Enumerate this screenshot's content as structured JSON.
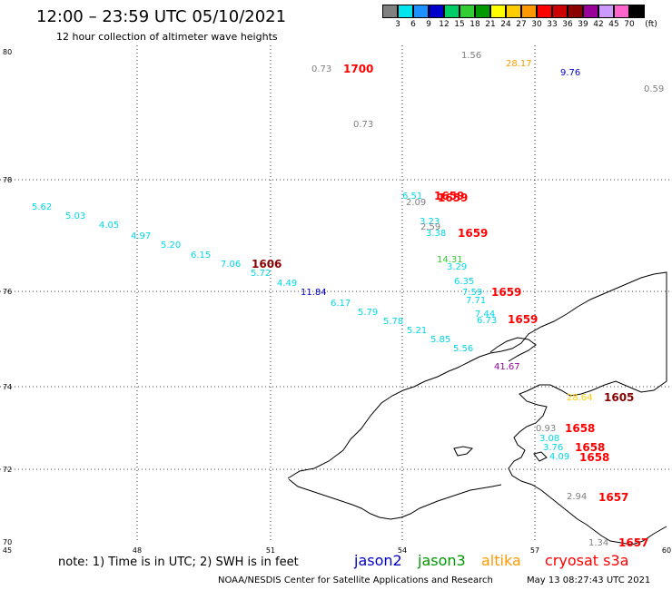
{
  "header": {
    "title": "12:00 – 23:59 UTC 05/10/2021",
    "subtitle": "12 hour collection of altimeter wave heights"
  },
  "color_scale": {
    "labels": [
      "3",
      "6",
      "9",
      "12",
      "15",
      "18",
      "21",
      "24",
      "27",
      "30",
      "33",
      "36",
      "39",
      "42",
      "45",
      "70"
    ],
    "unit": "(ft)",
    "colors": [
      "#808080",
      "#00e5ee",
      "#1e90ff",
      "#0000cd",
      "#00cd66",
      "#32cd32",
      "#009900",
      "#ffff00",
      "#ffcc00",
      "#ff9900",
      "#ff0000",
      "#cc0000",
      "#8b0000",
      "#990099",
      "#cc99ff",
      "#ff66cc",
      "#000000"
    ]
  },
  "map": {
    "lat_ticks": [
      "80",
      "78",
      "76",
      "74",
      "72",
      "70"
    ],
    "lon_ticks": [
      "45",
      "48",
      "51",
      "54",
      "57",
      "60"
    ],
    "observations": [
      {
        "text": "0.73",
        "color": "#808080"
      },
      {
        "text": "1.56",
        "color": "#808080"
      },
      {
        "text": "28.17",
        "color": "#ff9900"
      },
      {
        "text": "9.76",
        "color": "#0000cd"
      },
      {
        "text": "0.59",
        "color": "#808080"
      },
      {
        "text": "0.73",
        "color": "#808080"
      },
      {
        "text": "5.62",
        "color": "#00d8e8"
      },
      {
        "text": "5.03",
        "color": "#00d8e8"
      },
      {
        "text": "4.05",
        "color": "#00d8e8"
      },
      {
        "text": "4.97",
        "color": "#00d8e8"
      },
      {
        "text": "5.20",
        "color": "#00d8e8"
      },
      {
        "text": "6.15",
        "color": "#00d8e8"
      },
      {
        "text": "7.06",
        "color": "#00d8e8"
      },
      {
        "text": "5.72",
        "color": "#00d8e8"
      },
      {
        "text": "4.49",
        "color": "#00d8e8"
      },
      {
        "text": "11.84",
        "color": "#0000cd"
      },
      {
        "text": "6.17",
        "color": "#00d8e8"
      },
      {
        "text": "5.79",
        "color": "#00d8e8"
      },
      {
        "text": "5.78",
        "color": "#00d8e8"
      },
      {
        "text": "5.21",
        "color": "#00d8e8"
      },
      {
        "text": "5.85",
        "color": "#00d8e8"
      },
      {
        "text": "5.56",
        "color": "#00d8e8"
      },
      {
        "text": "6.51",
        "color": "#00d8e8"
      },
      {
        "text": "2.09",
        "color": "#808080"
      },
      {
        "text": "3.23",
        "color": "#00d8e8"
      },
      {
        "text": "2.59",
        "color": "#808080"
      },
      {
        "text": "3.38",
        "color": "#00d8e8"
      },
      {
        "text": "14.31",
        "color": "#32cd32"
      },
      {
        "text": "3.29",
        "color": "#00d8e8"
      },
      {
        "text": "6.35",
        "color": "#00d8e8"
      },
      {
        "text": "7.59",
        "color": "#00d8e8"
      },
      {
        "text": "7.71",
        "color": "#00d8e8"
      },
      {
        "text": "7.44",
        "color": "#00d8e8"
      },
      {
        "text": "6.73",
        "color": "#00d8e8"
      },
      {
        "text": "41.67",
        "color": "#990099"
      },
      {
        "text": "28.64",
        "color": "#ffcc00"
      },
      {
        "text": "0.93",
        "color": "#808080"
      },
      {
        "text": "3.08",
        "color": "#00d8e8"
      },
      {
        "text": "3.76",
        "color": "#00d8e8"
      },
      {
        "text": "4.09",
        "color": "#00d8e8"
      },
      {
        "text": "2.94",
        "color": "#808080"
      },
      {
        "text": "1.34",
        "color": "#808080"
      }
    ],
    "pass_times": [
      {
        "text": "1700",
        "color": "#ff0000"
      },
      {
        "text": "1659",
        "color": "#ff0000"
      },
      {
        "text": "1659",
        "color": "#ff0000"
      },
      {
        "text": "1659",
        "color": "#ff0000"
      },
      {
        "text": "1659",
        "color": "#ff0000"
      },
      {
        "text": "1659",
        "color": "#ff0000"
      },
      {
        "text": "1606",
        "color": "#8b0000"
      },
      {
        "text": "1605",
        "color": "#8b0000"
      },
      {
        "text": "1658",
        "color": "#ff0000"
      },
      {
        "text": "1658",
        "color": "#ff0000"
      },
      {
        "text": "1658",
        "color": "#ff0000"
      },
      {
        "text": "1657",
        "color": "#ff0000"
      },
      {
        "text": "1657",
        "color": "#ff0000"
      }
    ]
  },
  "footer": {
    "note": "note:  1) Time is in UTC;  2) SWH is in feet",
    "satellites": [
      {
        "name": "jason2",
        "color": "#0000cc"
      },
      {
        "name": "jason3",
        "color": "#009900"
      },
      {
        "name": "altika",
        "color": "#ff9900"
      },
      {
        "name": "cryosat s3a",
        "color": "#ff0000"
      }
    ],
    "credit": "NOAA/NESDIS Center for Satellite Applications and Research",
    "timestamp": "May 13 08:27:43 UTC 2021"
  }
}
